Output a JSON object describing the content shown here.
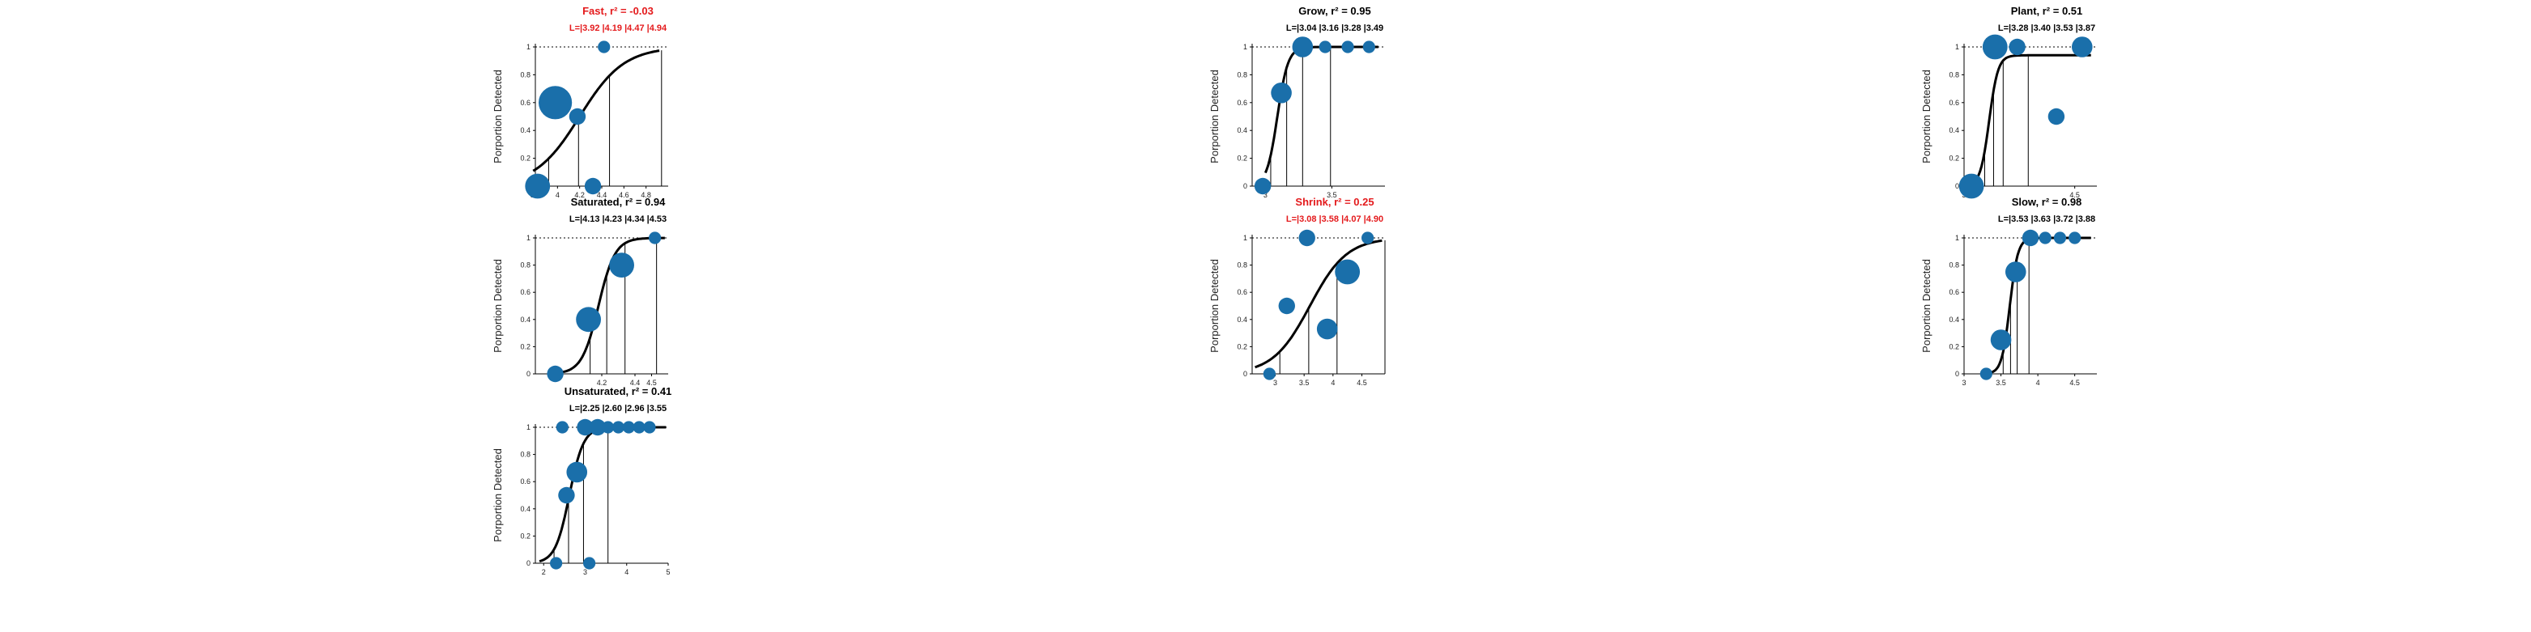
{
  "colors": {
    "marker": "#1a6faa",
    "curve": "#000000",
    "title_ok": "#000000",
    "title_bad": "#e41a1c"
  },
  "y_axis_label": "Porportion Detected",
  "chart_data": [
    {
      "id": "fast",
      "type": "scatter",
      "title": "Fast, r² = -0.03",
      "subtitle": "L=|3.92 |4.19 |4.47 |4.94",
      "title_color": "#e41a1c",
      "xlim": [
        3.8,
        5.0
      ],
      "ylim": [
        0,
        1
      ],
      "xticks": [
        "3.8",
        "4",
        "4.2",
        "4.4",
        "4.6",
        "4.8"
      ],
      "xtick_values": [
        3.8,
        4.0,
        4.2,
        4.4,
        4.6,
        4.8
      ],
      "yticks": [
        "0",
        "0.2",
        "0.4",
        "0.6",
        "0.8",
        "1"
      ],
      "points": [
        {
          "x": 3.82,
          "y": 0.0,
          "size": 4
        },
        {
          "x": 3.98,
          "y": 0.6,
          "size": 6
        },
        {
          "x": 4.18,
          "y": 0.5,
          "size": 2
        },
        {
          "x": 4.32,
          "y": 0.0,
          "size": 2
        },
        {
          "x": 4.42,
          "y": 1.0,
          "size": 1
        }
      ],
      "levels": [
        3.92,
        4.19,
        4.47,
        4.94
      ],
      "curve": {
        "mu": 4.2,
        "s": 0.2,
        "x0": 3.78,
        "x1": 4.92
      }
    },
    {
      "id": "grow",
      "type": "scatter",
      "title": "Grow, r² = 0.95",
      "subtitle": "L=|3.04 |3.16 |3.28 |3.49",
      "title_color": "#000000",
      "xlim": [
        2.9,
        3.9
      ],
      "ylim": [
        0,
        1
      ],
      "xticks": [
        "3",
        "3.5"
      ],
      "xtick_values": [
        3.0,
        3.5
      ],
      "yticks": [
        "0",
        "0.2",
        "0.4",
        "0.6",
        "0.8",
        "1"
      ],
      "points": [
        {
          "x": 2.98,
          "y": 0.0,
          "size": 2
        },
        {
          "x": 3.12,
          "y": 0.67,
          "size": 3
        },
        {
          "x": 3.28,
          "y": 1.0,
          "size": 3
        },
        {
          "x": 3.45,
          "y": 1.0,
          "size": 1
        },
        {
          "x": 3.62,
          "y": 1.0,
          "size": 1
        },
        {
          "x": 3.78,
          "y": 1.0,
          "size": 1
        }
      ],
      "levels": [
        3.04,
        3.16,
        3.28,
        3.49
      ],
      "curve": {
        "mu": 3.09,
        "s": 0.04,
        "x0": 3.0,
        "x1": 3.85
      }
    },
    {
      "id": "plant",
      "type": "scatter",
      "title": "Plant, r² = 0.51",
      "subtitle": "L=|3.28 |3.40 |3.53 |3.87",
      "title_color": "#000000",
      "xlim": [
        3.0,
        4.8
      ],
      "ylim": [
        0,
        1
      ],
      "xticks": [
        "3",
        "4.5"
      ],
      "xtick_values": [
        3.0,
        4.5
      ],
      "yticks": [
        "0",
        "0.2",
        "0.4",
        "0.6",
        "0.8",
        "1"
      ],
      "points": [
        {
          "x": 3.1,
          "y": 0.0,
          "size": 4
        },
        {
          "x": 3.42,
          "y": 1.0,
          "size": 4
        },
        {
          "x": 3.72,
          "y": 1.0,
          "size": 2
        },
        {
          "x": 4.25,
          "y": 0.5,
          "size": 2
        },
        {
          "x": 4.6,
          "y": 1.0,
          "size": 3
        }
      ],
      "levels": [
        3.28,
        3.4,
        3.53,
        3.87
      ],
      "curve": {
        "mu": 3.34,
        "s": 0.06,
        "x0": 3.05,
        "x1": 4.72,
        "top": 0.94
      }
    },
    {
      "id": "saturated",
      "type": "scatter",
      "title": "Saturated, r² = 0.94",
      "subtitle": "L=|4.13 |4.23 |4.34 |4.53",
      "title_color": "#000000",
      "xlim": [
        3.8,
        4.6
      ],
      "ylim": [
        0,
        1
      ],
      "xticks": [
        "4.2",
        "4.4",
        "4.5"
      ],
      "xtick_values": [
        4.2,
        4.4,
        4.5
      ],
      "yticks": [
        "0",
        "0.2",
        "0.4",
        "0.6",
        "0.8",
        "1"
      ],
      "points": [
        {
          "x": 3.92,
          "y": 0.0,
          "size": 2
        },
        {
          "x": 4.12,
          "y": 0.4,
          "size": 4
        },
        {
          "x": 4.32,
          "y": 0.8,
          "size": 4
        },
        {
          "x": 4.52,
          "y": 1.0,
          "size": 1
        }
      ],
      "levels": [
        4.13,
        4.23,
        4.34,
        4.53
      ],
      "curve": {
        "mu": 4.18,
        "s": 0.05,
        "x0": 3.95,
        "x1": 4.58
      }
    },
    {
      "id": "shrink",
      "type": "scatter",
      "title": "Shrink, r² = 0.25",
      "subtitle": "L=|3.08 |3.58 |4.07 |4.90",
      "title_color": "#e41a1c",
      "xlim": [
        2.6,
        4.9
      ],
      "ylim": [
        0,
        1
      ],
      "xticks": [
        "3",
        "3.5",
        "4",
        "4.5"
      ],
      "xtick_values": [
        3.0,
        3.5,
        4.0,
        4.5
      ],
      "yticks": [
        "0",
        "0.2",
        "0.4",
        "0.6",
        "0.8",
        "1"
      ],
      "points": [
        {
          "x": 2.9,
          "y": 0.0,
          "size": 1
        },
        {
          "x": 3.2,
          "y": 0.5,
          "size": 2
        },
        {
          "x": 3.55,
          "y": 1.0,
          "size": 2
        },
        {
          "x": 3.9,
          "y": 0.33,
          "size": 3
        },
        {
          "x": 4.25,
          "y": 0.75,
          "size": 4
        },
        {
          "x": 4.6,
          "y": 1.0,
          "size": 1
        }
      ],
      "levels": [
        3.08,
        3.58,
        4.07,
        4.9
      ],
      "curve": {
        "mu": 3.6,
        "s": 0.32,
        "x0": 2.65,
        "x1": 4.85
      }
    },
    {
      "id": "slow",
      "type": "scatter",
      "title": "Slow, r² = 0.98",
      "subtitle": "L=|3.53 |3.63 |3.72 |3.88",
      "title_color": "#000000",
      "xlim": [
        3.0,
        4.8
      ],
      "ylim": [
        0,
        1
      ],
      "xticks": [
        "3",
        "3.5",
        "4",
        "4.5"
      ],
      "xtick_values": [
        3.0,
        3.5,
        4.0,
        4.5
      ],
      "yticks": [
        "0",
        "0.2",
        "0.4",
        "0.6",
        "0.8",
        "1"
      ],
      "points": [
        {
          "x": 3.3,
          "y": 0.0,
          "size": 1
        },
        {
          "x": 3.5,
          "y": 0.25,
          "size": 3
        },
        {
          "x": 3.7,
          "y": 0.75,
          "size": 3
        },
        {
          "x": 3.9,
          "y": 1.0,
          "size": 2
        },
        {
          "x": 4.1,
          "y": 1.0,
          "size": 1
        },
        {
          "x": 4.3,
          "y": 1.0,
          "size": 1
        },
        {
          "x": 4.5,
          "y": 1.0,
          "size": 1
        }
      ],
      "levels": [
        3.53,
        3.63,
        3.72,
        3.88
      ],
      "curve": {
        "mu": 3.62,
        "s": 0.055,
        "x0": 3.3,
        "x1": 4.72
      }
    },
    {
      "id": "unsaturated",
      "type": "scatter",
      "title": "Unsaturated, r² = 0.41",
      "subtitle": "L=|2.25 |2.60 |2.96 |3.55",
      "title_color": "#000000",
      "xlim": [
        1.8,
        5.0
      ],
      "ylim": [
        0,
        1
      ],
      "xticks": [
        "2",
        "3",
        "4",
        "5"
      ],
      "xtick_values": [
        2,
        3,
        4,
        5
      ],
      "yticks": [
        "0",
        "0.2",
        "0.4",
        "0.6",
        "0.8",
        "1"
      ],
      "points": [
        {
          "x": 2.3,
          "y": 0.0,
          "size": 1
        },
        {
          "x": 2.55,
          "y": 0.5,
          "size": 2
        },
        {
          "x": 2.8,
          "y": 0.67,
          "size": 3
        },
        {
          "x": 3.1,
          "y": 0.0,
          "size": 1
        },
        {
          "x": 2.45,
          "y": 1.0,
          "size": 1
        },
        {
          "x": 3.0,
          "y": 1.0,
          "size": 2
        },
        {
          "x": 3.3,
          "y": 1.0,
          "size": 2
        },
        {
          "x": 3.55,
          "y": 1.0,
          "size": 1
        },
        {
          "x": 3.8,
          "y": 1.0,
          "size": 1
        },
        {
          "x": 4.05,
          "y": 1.0,
          "size": 1
        },
        {
          "x": 4.3,
          "y": 1.0,
          "size": 1
        },
        {
          "x": 4.55,
          "y": 1.0,
          "size": 1
        }
      ],
      "levels": [
        2.25,
        2.6,
        2.96,
        3.55
      ],
      "curve": {
        "mu": 2.62,
        "s": 0.17,
        "x0": 1.9,
        "x1": 4.95
      }
    }
  ]
}
